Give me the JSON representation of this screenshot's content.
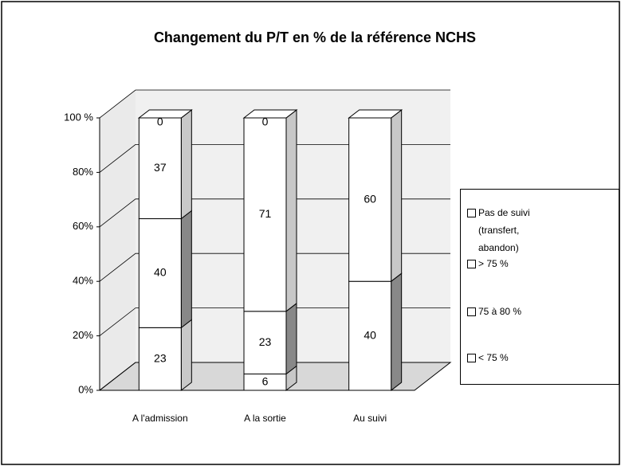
{
  "chart_data": {
    "type": "bar3d_stacked",
    "title": "Changement du P/T en % de la référence NCHS",
    "categories": [
      "A l'admission",
      "A la sortie",
      "Au suivi"
    ],
    "series": [
      {
        "name": "< 75 %",
        "color": "#ffffff",
        "values": [
          23,
          6,
          0
        ]
      },
      {
        "name": "75 à 80 %",
        "color": "#ffffff",
        "values": [
          40,
          23,
          40
        ]
      },
      {
        "name": "> 75 %",
        "color": "#ffffff",
        "values": [
          37,
          71,
          60
        ]
      },
      {
        "name": "Pas de suivi (transfert, abandon)",
        "color": "#ffffff",
        "values": [
          0,
          0,
          0
        ],
        "value_labels": [
          "0",
          "0",
          null
        ]
      }
    ],
    "ylim": [
      0,
      100
    ],
    "yticks": [
      {
        "value": 0,
        "label": "0%"
      },
      {
        "value": 20,
        "label": "20%"
      },
      {
        "value": 40,
        "label": "40%"
      },
      {
        "value": 60,
        "label": "60%"
      },
      {
        "value": 80,
        "label": "80%"
      },
      {
        "value": 100,
        "label": "100 %"
      }
    ],
    "grid": true
  }
}
